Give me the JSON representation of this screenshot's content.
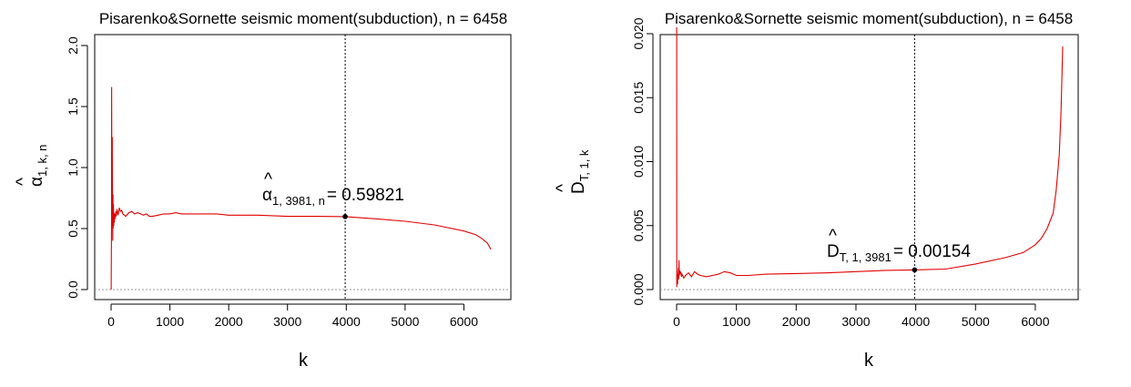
{
  "chart_data": [
    {
      "type": "line",
      "title": "Pisarenko&Sornette seismic moment(subduction), n = 6458",
      "xlabel": "k",
      "ylabel": {
        "hat": "^",
        "main": "α",
        "sub": "1, k, n"
      },
      "xlim": [
        0,
        6458
      ],
      "ylim": [
        0,
        2.0
      ],
      "xticks": [
        "0",
        "1000",
        "2000",
        "3000",
        "4000",
        "5000",
        "6000"
      ],
      "xtick_values": [
        0,
        1000,
        2000,
        3000,
        4000,
        5000,
        6000
      ],
      "yticks": [
        "0.0",
        "0.5",
        "1.0",
        "1.5",
        "2.0"
      ],
      "ytick_values": [
        0,
        0.5,
        1.0,
        1.5,
        2.0
      ],
      "grid": false,
      "reference_hline": 0,
      "reference_vline": 3981,
      "series_color": "#e00000",
      "series": [
        {
          "x": [
            1,
            8,
            10,
            13,
            15,
            18,
            20,
            24,
            28,
            32,
            36,
            40,
            45,
            50,
            55,
            60,
            70,
            80,
            90,
            100,
            120,
            140,
            160,
            180,
            200,
            250,
            300,
            350,
            400,
            450,
            500,
            550,
            600,
            650,
            700,
            800,
            900,
            1000,
            1100,
            1200,
            1400,
            1600,
            1800,
            2000,
            2500,
            3000,
            3500,
            3981,
            4500,
            5000,
            5500,
            6000,
            6200,
            6300,
            6400,
            6458
          ],
          "values": [
            0.0,
            0.6,
            1.66,
            0.95,
            1.25,
            0.52,
            1.25,
            0.72,
            0.4,
            0.78,
            0.5,
            0.7,
            0.52,
            0.63,
            0.55,
            0.62,
            0.58,
            0.64,
            0.6,
            0.66,
            0.61,
            0.67,
            0.64,
            0.65,
            0.62,
            0.6,
            0.63,
            0.64,
            0.62,
            0.63,
            0.62,
            0.61,
            0.62,
            0.6,
            0.6,
            0.61,
            0.62,
            0.62,
            0.63,
            0.62,
            0.62,
            0.62,
            0.62,
            0.61,
            0.61,
            0.6,
            0.6,
            0.598,
            0.58,
            0.56,
            0.53,
            0.48,
            0.45,
            0.42,
            0.38,
            0.33
          ]
        }
      ],
      "annotation": {
        "hat": "^",
        "main": "α",
        "sub": "1, 3981, n",
        "value": "= 0.59821",
        "x": 3981,
        "y": 0.59821
      }
    },
    {
      "type": "line",
      "title": "Pisarenko&Sornette seismic moment(subduction), n = 6458",
      "xlabel": "k",
      "ylabel": {
        "hat": "^",
        "main": "D",
        "sub": "T, 1, k"
      },
      "xlim": [
        0,
        6458
      ],
      "ylim": [
        0,
        0.0205
      ],
      "xticks": [
        "0",
        "1000",
        "2000",
        "3000",
        "4000",
        "5000",
        "6000"
      ],
      "xtick_values": [
        0,
        1000,
        2000,
        3000,
        4000,
        5000,
        6000
      ],
      "yticks": [
        "0.000",
        "0.005",
        "0.010",
        "0.015",
        "0.020"
      ],
      "ytick_values": [
        0,
        0.005,
        0.01,
        0.015,
        0.02
      ],
      "grid": false,
      "reference_hline": 0,
      "reference_vline": 3981,
      "series_color": "#e00000",
      "series": [
        {
          "x": [
            1,
            3,
            5,
            8,
            12,
            16,
            20,
            25,
            30,
            35,
            40,
            45,
            50,
            60,
            70,
            80,
            90,
            100,
            120,
            150,
            200,
            250,
            300,
            350,
            400,
            500,
            600,
            700,
            800,
            900,
            1000,
            1200,
            1500,
            2000,
            2500,
            3000,
            3500,
            3981,
            4500,
            5000,
            5500,
            5800,
            6000,
            6100,
            6200,
            6300,
            6350,
            6400,
            6430,
            6458
          ],
          "values": [
            0.0205,
            0.0002,
            0.0015,
            0.0005,
            0.001,
            0.0004,
            0.0012,
            0.0009,
            0.0017,
            0.0008,
            0.0023,
            0.0011,
            0.0015,
            0.0012,
            0.0014,
            0.001,
            0.0012,
            0.0011,
            0.0009,
            0.0011,
            0.0013,
            0.001,
            0.0014,
            0.0012,
            0.0011,
            0.001,
            0.0011,
            0.0012,
            0.0014,
            0.0013,
            0.0011,
            0.0011,
            0.0012,
            0.00125,
            0.0013,
            0.0014,
            0.0015,
            0.00154,
            0.0016,
            0.002,
            0.0025,
            0.0029,
            0.0035,
            0.004,
            0.0048,
            0.006,
            0.0078,
            0.0105,
            0.014,
            0.019
          ]
        }
      ],
      "annotation": {
        "hat": "^",
        "main": "D",
        "sub": "T, 1, 3981",
        "value": "= 0.00154",
        "x": 3981,
        "y": 0.00154
      }
    }
  ]
}
